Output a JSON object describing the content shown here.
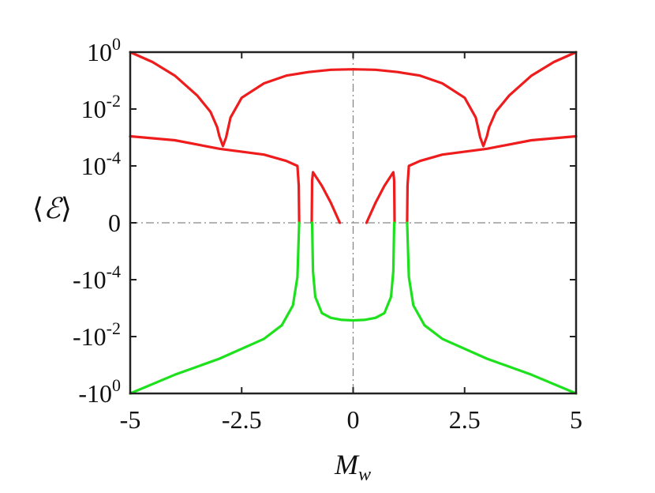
{
  "chart_data": {
    "type": "line",
    "xlabel": "M_w",
    "ylabel": "⟨ℰ⟩",
    "xlim": [
      -5,
      5
    ],
    "y_scale": "symmetric-log",
    "y_tick_labels": [
      "10^0",
      "10^-2",
      "10^-4",
      "0",
      "-10^-4",
      "-10^-2",
      "-10^0"
    ],
    "x_tick_labels": [
      "-5",
      "-2.5",
      "0",
      "2.5",
      "5"
    ],
    "x_ticks": [
      -5,
      -2.5,
      0,
      2.5,
      5
    ],
    "reference_lines": [
      "x = 0",
      "y = 0"
    ],
    "grid": false,
    "colors": {
      "positive": "#ee1c1c",
      "negative": "#1ee11e",
      "axis": "#222222",
      "reference": "#888888"
    },
    "series": [
      {
        "color": "positive",
        "points": [
          [
            -5,
            1
          ],
          [
            -4.5,
            0.45
          ],
          [
            -4,
            0.15
          ],
          [
            -3.5,
            0.03
          ],
          [
            -3.2,
            0.008
          ],
          [
            -3.05,
            0.0023
          ],
          [
            -3.0,
            0.0011
          ],
          [
            -2.92,
            0.0005
          ],
          [
            -2.85,
            0.001
          ],
          [
            -2.75,
            0.005
          ],
          [
            -2.5,
            0.025
          ],
          [
            -2,
            0.08
          ],
          [
            -1.5,
            0.15
          ],
          [
            -1,
            0.2
          ],
          [
            -0.5,
            0.24
          ],
          [
            0,
            0.25
          ],
          [
            0.5,
            0.24
          ],
          [
            1,
            0.2
          ],
          [
            1.5,
            0.15
          ],
          [
            2,
            0.08
          ],
          [
            2.5,
            0.025
          ],
          [
            2.75,
            0.005
          ],
          [
            2.85,
            0.001
          ],
          [
            2.92,
            0.0005
          ],
          [
            3.0,
            0.0011
          ],
          [
            3.05,
            0.0023
          ],
          [
            3.2,
            0.008
          ],
          [
            3.5,
            0.03
          ],
          [
            4,
            0.15
          ],
          [
            4.5,
            0.45
          ],
          [
            5,
            1
          ]
        ]
      },
      {
        "color": "positive",
        "points": [
          [
            -5,
            0.0011
          ],
          [
            -4,
            0.0008
          ],
          [
            -3,
            0.0004
          ],
          [
            -2,
            0.00025
          ],
          [
            -1.5,
            0.00015
          ],
          [
            -1.25,
            0.0001
          ],
          [
            -1.22,
            2e-05
          ],
          [
            -1.21,
            1e-06
          ]
        ]
      },
      {
        "color": "positive",
        "points": [
          [
            -0.93,
            1e-06
          ],
          [
            -0.92,
            3e-05
          ],
          [
            -0.9,
            6e-05
          ],
          [
            -0.7,
            2e-05
          ],
          [
            -0.5,
            5e-06
          ],
          [
            -0.3,
            1e-06
          ]
        ]
      },
      {
        "color": "positive",
        "points": [
          [
            0.3,
            1e-06
          ],
          [
            0.5,
            5e-06
          ],
          [
            0.7,
            2e-05
          ],
          [
            0.9,
            6e-05
          ],
          [
            0.92,
            3e-05
          ],
          [
            0.93,
            1e-06
          ]
        ]
      },
      {
        "color": "positive",
        "points": [
          [
            1.21,
            1e-06
          ],
          [
            1.22,
            2e-05
          ],
          [
            1.25,
            0.0001
          ],
          [
            1.5,
            0.00015
          ],
          [
            2,
            0.00025
          ],
          [
            3,
            0.0004
          ],
          [
            4,
            0.0008
          ],
          [
            5,
            0.0011
          ]
        ]
      },
      {
        "color": "negative",
        "points": [
          [
            -5,
            -1
          ],
          [
            -4,
            -0.22
          ],
          [
            -3,
            -0.06
          ],
          [
            -2,
            -0.012
          ],
          [
            -1.6,
            -0.004
          ],
          [
            -1.35,
            -0.0008
          ],
          [
            -1.25,
            -8e-05
          ],
          [
            -1.21,
            -1e-06
          ]
        ]
      },
      {
        "color": "negative",
        "points": [
          [
            -0.92,
            -1e-06
          ],
          [
            -0.9,
            -5e-05
          ],
          [
            -0.85,
            -0.0004
          ],
          [
            -0.7,
            -0.0015
          ],
          [
            -0.5,
            -0.0022
          ],
          [
            -0.25,
            -0.0026
          ],
          [
            0,
            -0.0027
          ],
          [
            0.25,
            -0.0026
          ],
          [
            0.5,
            -0.0022
          ],
          [
            0.7,
            -0.0015
          ],
          [
            0.85,
            -0.0004
          ],
          [
            0.9,
            -5e-05
          ],
          [
            0.92,
            -1e-06
          ]
        ]
      },
      {
        "color": "negative",
        "points": [
          [
            1.21,
            -1e-06
          ],
          [
            1.25,
            -8e-05
          ],
          [
            1.35,
            -0.0008
          ],
          [
            1.6,
            -0.004
          ],
          [
            2,
            -0.012
          ],
          [
            3,
            -0.06
          ],
          [
            4,
            -0.22
          ],
          [
            5,
            -1
          ]
        ]
      }
    ]
  }
}
